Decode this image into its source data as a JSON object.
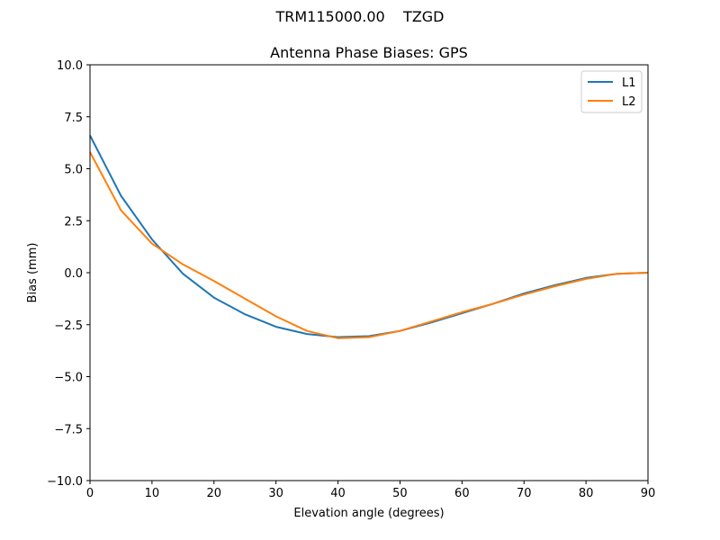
{
  "figure": {
    "suptitle": "TRM115000.00    TZGD",
    "title": "Antenna Phase Biases: GPS",
    "xlabel": "Elevation angle (degrees)",
    "ylabel": "Bias (mm)"
  },
  "chart_data": {
    "type": "line",
    "title": "Antenna Phase Biases: GPS",
    "suptitle": "TRM115000.00    TZGD",
    "xlabel": "Elevation angle (degrees)",
    "ylabel": "Bias (mm)",
    "xlim": [
      0,
      90
    ],
    "ylim": [
      -10.0,
      10.0
    ],
    "xticks": [
      0,
      10,
      20,
      30,
      40,
      50,
      60,
      70,
      80,
      90
    ],
    "yticks": [
      -10.0,
      -7.5,
      -5.0,
      -2.5,
      0.0,
      2.5,
      5.0,
      7.5,
      10.0
    ],
    "ytick_labels": [
      "−10.0",
      "−7.5",
      "−5.0",
      "−2.5",
      "0.0",
      "2.5",
      "5.0",
      "7.5",
      "10.0"
    ],
    "grid": false,
    "legend_position": "upper right",
    "x": [
      0,
      5,
      10,
      15,
      20,
      25,
      30,
      35,
      40,
      45,
      50,
      55,
      60,
      65,
      70,
      75,
      80,
      85,
      90
    ],
    "series": [
      {
        "name": "L1",
        "color": "#1f77b4",
        "values": [
          6.6,
          3.7,
          1.6,
          -0.05,
          -1.2,
          -2.0,
          -2.6,
          -2.95,
          -3.1,
          -3.05,
          -2.8,
          -2.4,
          -1.95,
          -1.5,
          -1.0,
          -0.6,
          -0.25,
          -0.05,
          0.0
        ]
      },
      {
        "name": "L2",
        "color": "#ff7f0e",
        "values": [
          5.8,
          3.0,
          1.4,
          0.4,
          -0.4,
          -1.25,
          -2.1,
          -2.8,
          -3.15,
          -3.1,
          -2.8,
          -2.35,
          -1.9,
          -1.5,
          -1.05,
          -0.65,
          -0.3,
          -0.05,
          0.0
        ]
      }
    ]
  }
}
